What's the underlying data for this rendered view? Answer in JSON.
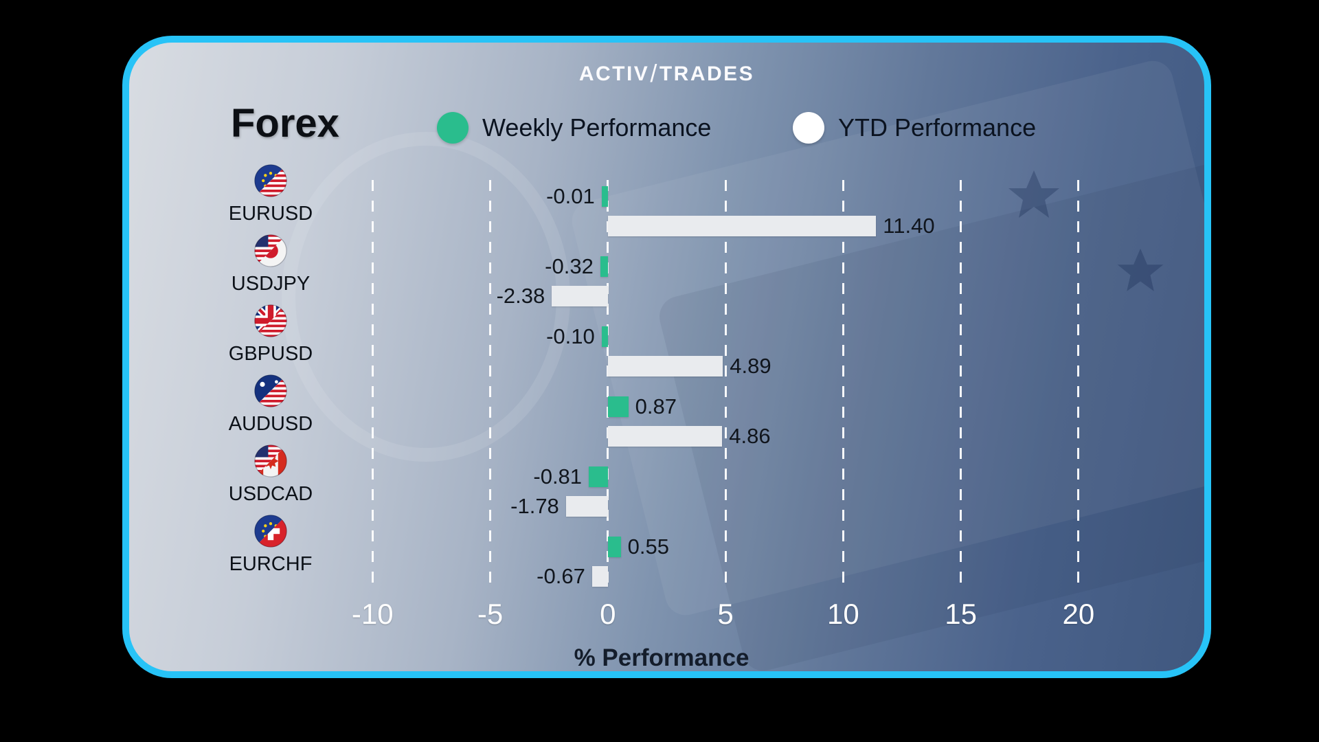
{
  "brand": {
    "logo_left": "Activ",
    "slash": "/",
    "logo_right": "Trades"
  },
  "title": "Forex",
  "legend": [
    {
      "label": "Weekly Performance",
      "color": "#2abd8d"
    },
    {
      "label": "YTD Performance",
      "color": "#ffffff"
    }
  ],
  "chart_data": {
    "type": "bar",
    "orientation": "horizontal",
    "title": "Forex",
    "xlabel": "% Performance",
    "xticks": [
      -10,
      -5,
      0,
      5,
      10,
      15,
      20
    ],
    "xrange": [
      -11,
      25.2
    ],
    "grid": "dashed-vertical-white",
    "legend_position": "top",
    "categories": [
      "EURUSD",
      "USDJPY",
      "GBPUSD",
      "AUDUSD",
      "USDCAD",
      "EURCHF"
    ],
    "flags": [
      [
        "eu",
        "us"
      ],
      [
        "us",
        "jp"
      ],
      [
        "gb",
        "us"
      ],
      [
        "au",
        "us"
      ],
      [
        "us",
        "ca"
      ],
      [
        "eu",
        "ch"
      ]
    ],
    "series": [
      {
        "name": "Weekly Performance",
        "color": "#2abd8d",
        "values": [
          -0.01,
          -0.32,
          -0.1,
          0.87,
          -0.81,
          0.55
        ]
      },
      {
        "name": "YTD Performance",
        "color": "#e9ebee",
        "values": [
          11.4,
          -2.38,
          4.89,
          4.86,
          -1.78,
          -0.67
        ]
      }
    ]
  },
  "colors": {
    "card_border": "#27c3f7",
    "background": "#000000",
    "tick_text": "#ffffff"
  }
}
